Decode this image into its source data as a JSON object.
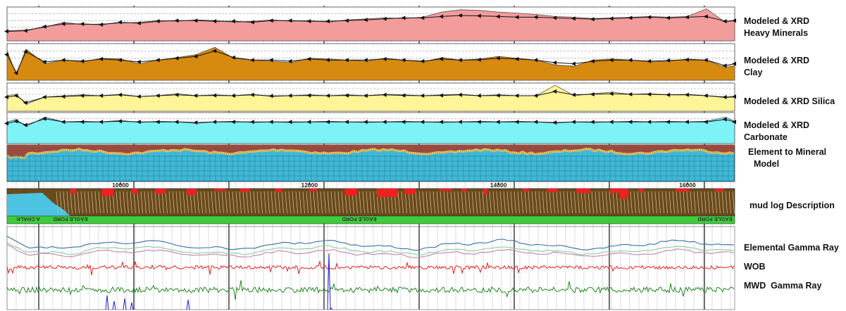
{
  "chart_data": {
    "type": "area",
    "x_axis": {
      "label": "",
      "ticks": [
        10000,
        12000,
        14000,
        16000
      ],
      "range": [
        8800,
        16500
      ]
    },
    "tracks": [
      {
        "id": "heavy",
        "label_lines": [
          "Modeled & XRD",
          "Heavy Minerals"
        ],
        "fill_color": "#f39c9c",
        "x": [
          8800,
          9000,
          9200,
          9400,
          9600,
          9800,
          10000,
          10200,
          10400,
          10600,
          10800,
          11000,
          11200,
          11400,
          11600,
          11800,
          12000,
          12200,
          12400,
          12600,
          12800,
          13000,
          13200,
          13400,
          13600,
          13800,
          14000,
          14200,
          14400,
          14600,
          14800,
          15000,
          15200,
          15400,
          15600,
          15800,
          16000,
          16200,
          16400,
          16500
        ],
        "modeled": [
          0.3,
          0.32,
          0.4,
          0.55,
          0.48,
          0.5,
          0.52,
          0.55,
          0.6,
          0.58,
          0.62,
          0.6,
          0.55,
          0.58,
          0.62,
          0.58,
          0.6,
          0.55,
          0.62,
          0.65,
          0.68,
          0.66,
          0.7,
          0.85,
          0.92,
          0.9,
          0.85,
          0.82,
          0.78,
          0.72,
          0.7,
          0.66,
          0.68,
          0.7,
          0.72,
          0.7,
          0.72,
          0.95,
          0.55,
          0.6
        ],
        "xrd": [
          0.28,
          0.3,
          0.42,
          0.5,
          0.5,
          0.48,
          0.55,
          0.52,
          0.58,
          0.6,
          0.6,
          0.58,
          0.58,
          0.55,
          0.6,
          0.6,
          0.58,
          0.58,
          0.6,
          0.62,
          0.65,
          0.68,
          0.68,
          0.72,
          0.75,
          0.74,
          0.72,
          0.7,
          0.7,
          0.68,
          0.66,
          0.64,
          0.66,
          0.68,
          0.7,
          0.68,
          0.7,
          0.72,
          0.58,
          0.6
        ]
      },
      {
        "id": "clay",
        "label_lines": [
          "Modeled & XRD",
          "Clay"
        ],
        "fill_color": "#d68a0f",
        "x": [
          8800,
          8900,
          9000,
          9200,
          9400,
          9600,
          9800,
          10000,
          10200,
          10400,
          10600,
          10800,
          11000,
          11200,
          11400,
          11600,
          11800,
          12000,
          12200,
          12400,
          12600,
          12800,
          13000,
          13200,
          13400,
          13600,
          13800,
          14000,
          14200,
          14400,
          14600,
          14800,
          15000,
          15200,
          15400,
          15600,
          15800,
          16000,
          16200,
          16400,
          16500
        ],
        "modeled": [
          0.8,
          0.15,
          0.85,
          0.45,
          0.55,
          0.5,
          0.6,
          0.58,
          0.45,
          0.55,
          0.62,
          0.7,
          0.9,
          0.6,
          0.55,
          0.52,
          0.48,
          0.6,
          0.58,
          0.55,
          0.52,
          0.6,
          0.55,
          0.5,
          0.62,
          0.55,
          0.58,
          0.65,
          0.6,
          0.55,
          0.42,
          0.38,
          0.55,
          0.58,
          0.55,
          0.5,
          0.52,
          0.58,
          0.55,
          0.35,
          0.4
        ],
        "xrd": [
          0.7,
          0.2,
          0.78,
          0.5,
          0.55,
          0.52,
          0.58,
          0.55,
          0.5,
          0.55,
          0.6,
          0.65,
          0.8,
          0.62,
          0.55,
          0.55,
          0.52,
          0.58,
          0.55,
          0.55,
          0.55,
          0.58,
          0.55,
          0.52,
          0.58,
          0.55,
          0.56,
          0.6,
          0.58,
          0.55,
          0.48,
          0.45,
          0.52,
          0.55,
          0.55,
          0.52,
          0.54,
          0.56,
          0.55,
          0.4,
          0.45
        ]
      },
      {
        "id": "silica",
        "label_lines": [
          "Modeled & XRD Silica"
        ],
        "fill_color": "#fff497",
        "x": [
          8800,
          8900,
          9000,
          9200,
          9400,
          9600,
          9800,
          10000,
          10200,
          10400,
          10600,
          10800,
          11000,
          11200,
          11400,
          11600,
          11800,
          12000,
          12200,
          12400,
          12600,
          12800,
          13000,
          13200,
          13400,
          13600,
          13800,
          14000,
          14200,
          14400,
          14600,
          14800,
          15000,
          15200,
          15400,
          15600,
          15800,
          16000,
          16200,
          16400,
          16500
        ],
        "modeled": [
          0.55,
          0.6,
          0.25,
          0.5,
          0.55,
          0.58,
          0.55,
          0.6,
          0.52,
          0.55,
          0.62,
          0.55,
          0.58,
          0.55,
          0.6,
          0.52,
          0.55,
          0.58,
          0.55,
          0.58,
          0.55,
          0.6,
          0.58,
          0.55,
          0.58,
          0.6,
          0.55,
          0.58,
          0.55,
          0.55,
          0.92,
          0.55,
          0.62,
          0.68,
          0.6,
          0.62,
          0.58,
          0.6,
          0.55,
          0.48,
          0.5
        ],
        "xrd": [
          0.5,
          0.55,
          0.3,
          0.5,
          0.52,
          0.55,
          0.55,
          0.58,
          0.52,
          0.55,
          0.58,
          0.55,
          0.56,
          0.55,
          0.58,
          0.54,
          0.55,
          0.56,
          0.55,
          0.56,
          0.55,
          0.58,
          0.56,
          0.55,
          0.56,
          0.58,
          0.55,
          0.56,
          0.55,
          0.55,
          0.7,
          0.58,
          0.6,
          0.62,
          0.6,
          0.6,
          0.58,
          0.58,
          0.55,
          0.5,
          0.52
        ]
      },
      {
        "id": "carbonate",
        "label_lines": [
          "Modeled & XRD",
          "Carbonate"
        ],
        "fill_color": "#7df2f7",
        "x": [
          8800,
          8900,
          9000,
          9200,
          9400,
          9600,
          9800,
          10000,
          10200,
          10400,
          10600,
          10800,
          11000,
          11200,
          11400,
          11600,
          11800,
          12000,
          12200,
          12400,
          12600,
          12800,
          13000,
          13200,
          13400,
          13600,
          13800,
          14000,
          14200,
          14400,
          14600,
          14800,
          15000,
          15200,
          15400,
          15600,
          15800,
          16000,
          16200,
          16400,
          16500
        ],
        "modeled": [
          0.7,
          0.78,
          0.55,
          0.85,
          0.7,
          0.72,
          0.7,
          0.75,
          0.68,
          0.72,
          0.7,
          0.65,
          0.7,
          0.72,
          0.68,
          0.7,
          0.68,
          0.7,
          0.72,
          0.7,
          0.68,
          0.7,
          0.72,
          0.7,
          0.68,
          0.7,
          0.72,
          0.7,
          0.72,
          0.7,
          0.66,
          0.7,
          0.68,
          0.7,
          0.72,
          0.7,
          0.72,
          0.7,
          0.72,
          0.85,
          0.72
        ],
        "xrd": [
          0.65,
          0.72,
          0.6,
          0.8,
          0.7,
          0.7,
          0.7,
          0.72,
          0.7,
          0.7,
          0.7,
          0.68,
          0.7,
          0.7,
          0.7,
          0.7,
          0.7,
          0.7,
          0.7,
          0.7,
          0.7,
          0.7,
          0.7,
          0.7,
          0.7,
          0.7,
          0.7,
          0.7,
          0.7,
          0.7,
          0.68,
          0.7,
          0.7,
          0.7,
          0.7,
          0.7,
          0.7,
          0.7,
          0.7,
          0.78,
          0.7
        ]
      }
    ],
    "mineral_model": {
      "label_lines": [
        "Element to Mineral",
        "Model"
      ],
      "colors": {
        "upper": "#9a4b3e",
        "boundary": "#f0c35a",
        "lower": "#3fb8d6"
      }
    },
    "mud_log": {
      "label": "mud log Description",
      "band_texts": [
        "A  CHALK",
        "EAGLE FORD",
        "EAGLE FORD",
        "EAGLE FORD"
      ],
      "colors": {
        "shale": "#6b4a1c",
        "limestone": "#4cc3e0",
        "band": "#3ccc3c",
        "red": "#ee2020"
      }
    },
    "curves": [
      {
        "name": "Elemental Gamma Ray",
        "color": "#3a6ea5"
      },
      {
        "name": "WOB",
        "color": "#e82020"
      },
      {
        "name": "MWD  Gamma Ray",
        "color": "#1f8a1f"
      }
    ],
    "grid": true
  }
}
